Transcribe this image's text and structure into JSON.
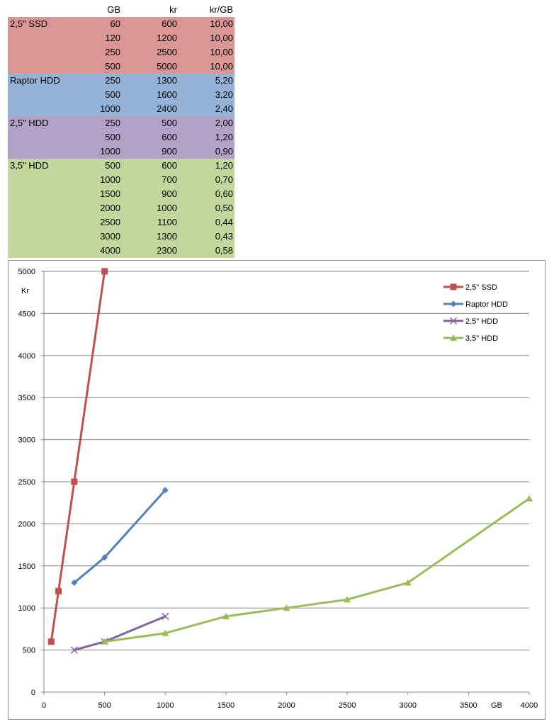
{
  "table": {
    "headers": {
      "gb": "GB",
      "kr": "kr",
      "ratio": "kr/GB"
    },
    "groups": [
      {
        "name": "2,5\" SSD",
        "color": "#D99694",
        "rows": [
          {
            "gb": "60",
            "kr": "600",
            "ratio": "10,00"
          },
          {
            "gb": "120",
            "kr": "1200",
            "ratio": "10,00"
          },
          {
            "gb": "250",
            "kr": "2500",
            "ratio": "10,00"
          },
          {
            "gb": "500",
            "kr": "5000",
            "ratio": "10,00"
          }
        ]
      },
      {
        "name": "Raptor HDD",
        "color": "#95B3D7",
        "rows": [
          {
            "gb": "250",
            "kr": "1300",
            "ratio": "5,20"
          },
          {
            "gb": "500",
            "kr": "1600",
            "ratio": "3,20"
          },
          {
            "gb": "1000",
            "kr": "2400",
            "ratio": "2,40"
          }
        ]
      },
      {
        "name": "2,5\" HDD",
        "color": "#B3A2C7",
        "rows": [
          {
            "gb": "250",
            "kr": "500",
            "ratio": "2,00"
          },
          {
            "gb": "500",
            "kr": "600",
            "ratio": "1,20"
          },
          {
            "gb": "1000",
            "kr": "900",
            "ratio": "0,90"
          }
        ]
      },
      {
        "name": "3,5\" HDD",
        "color": "#C3D69B",
        "rows": [
          {
            "gb": "500",
            "kr": "600",
            "ratio": "1,20"
          },
          {
            "gb": "1000",
            "kr": "700",
            "ratio": "0,70"
          },
          {
            "gb": "1500",
            "kr": "900",
            "ratio": "0,60"
          },
          {
            "gb": "2000",
            "kr": "1000",
            "ratio": "0,50"
          },
          {
            "gb": "2500",
            "kr": "1100",
            "ratio": "0,44"
          },
          {
            "gb": "3000",
            "kr": "1300",
            "ratio": "0,43"
          },
          {
            "gb": "4000",
            "kr": "2300",
            "ratio": "0,58"
          }
        ]
      }
    ]
  },
  "chart_data": {
    "type": "scatter",
    "title": "",
    "xlabel": "GB",
    "ylabel": "Kr",
    "xlim": [
      0,
      4000
    ],
    "ylim": [
      0,
      5000
    ],
    "x_ticks": [
      0,
      500,
      1000,
      1500,
      2000,
      2500,
      3000,
      3500,
      4000
    ],
    "y_ticks": [
      0,
      500,
      1000,
      1500,
      2000,
      2500,
      3000,
      3500,
      4000,
      4500,
      5000
    ],
    "grid": "horizontal",
    "legend_position": "top-right",
    "series": [
      {
        "name": "2,5\" SSD",
        "color": "#C0504D",
        "marker": "square",
        "x": [
          60,
          120,
          250,
          500
        ],
        "y": [
          600,
          1200,
          2500,
          5000
        ]
      },
      {
        "name": "Raptor HDD",
        "color": "#4F81BD",
        "marker": "diamond",
        "x": [
          250,
          500,
          1000
        ],
        "y": [
          1300,
          1600,
          2400
        ]
      },
      {
        "name": "2,5\" HDD",
        "color": "#8064A2",
        "marker": "x",
        "x": [
          250,
          500,
          1000
        ],
        "y": [
          500,
          600,
          900
        ]
      },
      {
        "name": "3,5\" HDD",
        "color": "#9BBB59",
        "marker": "triangle",
        "x": [
          500,
          1000,
          1500,
          2000,
          2500,
          3000,
          4000
        ],
        "y": [
          600,
          700,
          900,
          1000,
          1100,
          1300,
          2300
        ]
      }
    ]
  }
}
